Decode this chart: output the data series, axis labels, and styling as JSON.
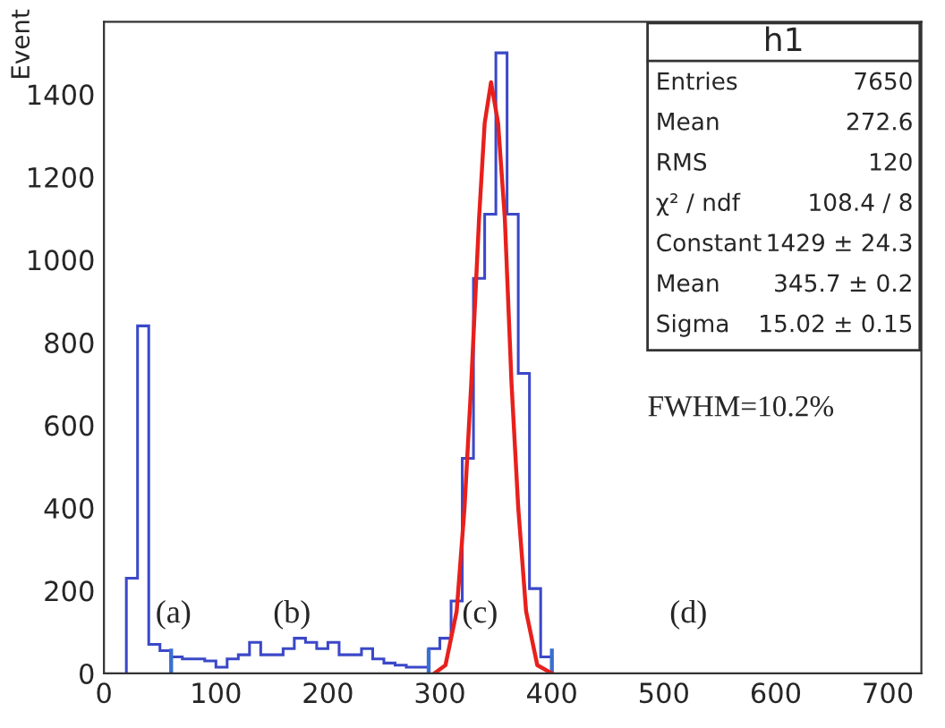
{
  "chart_data": {
    "type": "histogram",
    "ylabel": "Event",
    "xlim": [
      0,
      730
    ],
    "ylim": [
      0,
      1575
    ],
    "xticks": [
      0,
      100,
      200,
      300,
      400,
      500,
      600,
      700
    ],
    "yticks": [
      0,
      200,
      400,
      600,
      800,
      1000,
      1200,
      1400
    ],
    "grid": false,
    "series": [
      {
        "color": "#3b48c8",
        "bins": [
          20,
          30,
          40,
          50,
          60,
          70,
          80,
          90,
          100,
          110,
          120,
          130,
          140,
          150,
          160,
          170,
          180,
          190,
          200,
          210,
          220,
          230,
          240,
          250,
          260,
          270,
          280,
          290,
          300,
          310,
          320,
          330,
          340,
          350,
          360,
          370,
          380,
          390,
          400
        ],
        "values": [
          230,
          840,
          70,
          55,
          40,
          35,
          35,
          30,
          15,
          35,
          45,
          75,
          45,
          45,
          60,
          85,
          75,
          60,
          75,
          45,
          45,
          60,
          35,
          25,
          20,
          15,
          15,
          60,
          85,
          175,
          520,
          955,
          1110,
          1500,
          1110,
          725,
          205,
          40
        ]
      },
      {
        "type": "line",
        "color": "#e8201c",
        "x": [
          295,
          305,
          315,
          322,
          328,
          335,
          340,
          345.7,
          352,
          358,
          364,
          370,
          377,
          387,
          400
        ],
        "values": [
          0,
          20,
          150,
          400,
          700,
          1100,
          1330,
          1429,
          1330,
          1100,
          700,
          400,
          150,
          20,
          0
        ]
      },
      {
        "type": "bar",
        "color": "#3a6fd0",
        "x": [
          60,
          290,
          400
        ],
        "values": [
          60,
          60,
          60
        ]
      }
    ],
    "annotations": [
      "(a)",
      "(b)",
      "(c)",
      "(d)",
      "h1",
      "Entries\t7650",
      "Mean\t272.6",
      "RMS\t120",
      "χ² / ndf\t108.4 / 8",
      "Constant\t1429 ± 24.3",
      "Mean\t345.7 ± 0.2",
      "Sigma\t15.02 ± 0.15",
      "FWHM=10.2%"
    ]
  }
}
